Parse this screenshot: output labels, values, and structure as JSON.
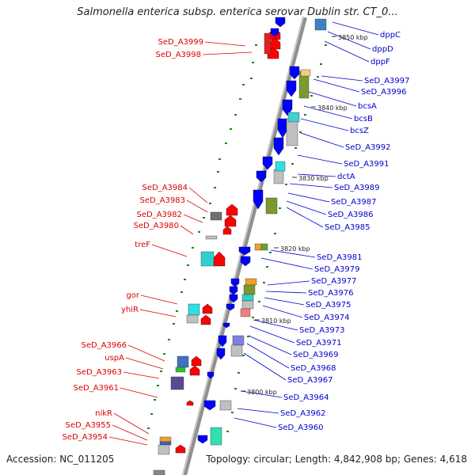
{
  "title": "Salmonella enterica subsp. enterica serovar Dublin str. CT_0...",
  "footer": {
    "accession": "Accession: NC_011205",
    "summary": "Topology: circular; Length: 4,842,908 bp; Genes: 4,618"
  },
  "colors": {
    "forward_gene": "#ff0000",
    "reverse_gene": "#0000ff",
    "forward_label": "#dd0000",
    "reverse_label": "#0000cc",
    "backbone": "#909090",
    "marker_dot": "#118811",
    "ruler_text": "#222222"
  },
  "ruler_ticks": [
    "3850 kbp",
    "3840 kbp",
    "3830 kbp",
    "3820 kbp",
    "3810 kbp",
    "3800 kbp"
  ],
  "forward_labels": [
    "SeD_A3999",
    "SeD_A3998",
    "SeD_A3984",
    "SeD_A3983",
    "SeD_A3982",
    "SeD_A3980",
    "treF",
    "gor",
    "yhiR",
    "SeD_A3966",
    "uspA",
    "SeD_A3963",
    "SeD_A3961",
    "nikR",
    "SeD_A3955",
    "SeD_A3954"
  ],
  "reverse_labels": [
    "dppC",
    "dppD",
    "dppF",
    "SeD_A3997",
    "SeD_A3996",
    "bcsA",
    "bcsB",
    "bcsZ",
    "SeD_A3992",
    "SeD_A3991",
    "dctA",
    "SeD_A3989",
    "SeD_A3987",
    "SeD_A3986",
    "SeD_A3985",
    "SeD_A3981",
    "SeD_A3979",
    "SeD_A3977",
    "SeD_A3976",
    "SeD_A3975",
    "SeD_A3974",
    "SeD_A3973",
    "SeD_A3971",
    "SeD_A3969",
    "SeD_A3968",
    "SeD_A3967",
    "SeD_A3964",
    "SeD_A3962",
    "SeD_A3960"
  ]
}
